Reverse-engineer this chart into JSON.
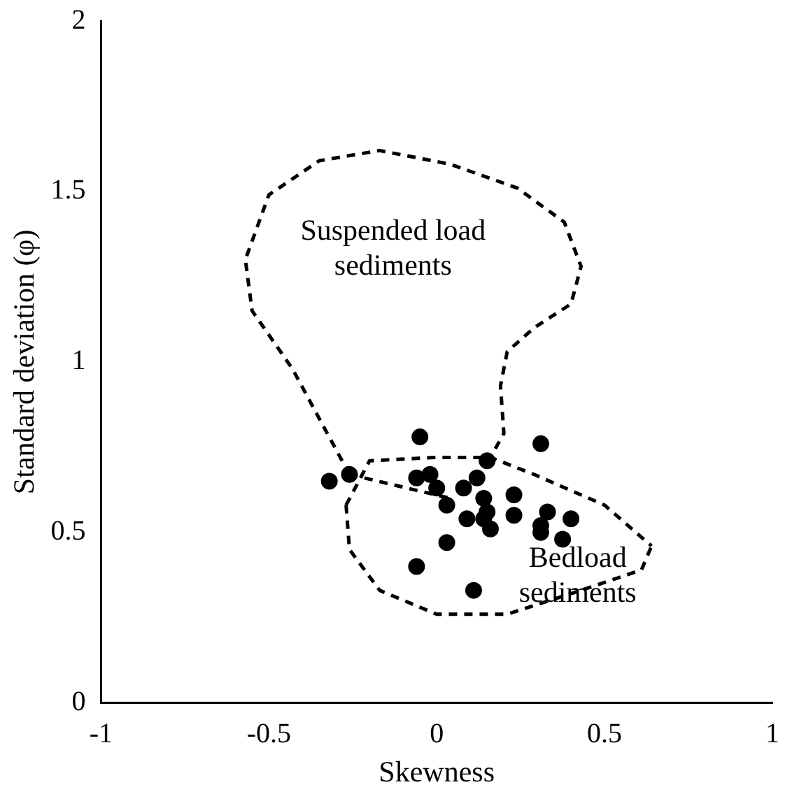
{
  "chart_data": {
    "type": "scatter",
    "xlabel": "Skewness",
    "ylabel": "Standard deviation (φ)",
    "xlim": [
      -1,
      1
    ],
    "ylim": [
      0,
      2
    ],
    "xticks": [
      -1,
      -0.5,
      0,
      0.5,
      1
    ],
    "yticks": [
      0,
      0.5,
      1,
      1.5,
      2
    ],
    "grid": false,
    "legend": false,
    "marker": "circle",
    "series": [
      {
        "color": "#000000",
        "x": [
          -0.05,
          0.31,
          -0.32,
          -0.26,
          0.15,
          -0.06,
          -0.02,
          0.0,
          0.03,
          0.08,
          0.12,
          0.14,
          0.15,
          0.09,
          0.14,
          0.16,
          0.23,
          0.23,
          0.33,
          0.4,
          0.31,
          0.31,
          0.375,
          0.03,
          -0.06,
          0.11
        ],
        "values": [
          0.78,
          0.76,
          0.65,
          0.67,
          0.71,
          0.66,
          0.67,
          0.63,
          0.58,
          0.63,
          0.66,
          0.6,
          0.56,
          0.54,
          0.54,
          0.51,
          0.61,
          0.55,
          0.56,
          0.54,
          0.52,
          0.5,
          0.48,
          0.47,
          0.4,
          0.33
        ]
      },
      {
        "type": "line",
        "color": "#000000",
        "line_style": "dashed",
        "marker": "none",
        "x": [
          -0.26,
          -0.43,
          -0.55,
          -0.57,
          -0.5,
          -0.35,
          -0.17,
          0.04,
          0.24,
          0.38,
          0.43,
          0.4,
          0.29,
          0.21,
          0.19,
          0.2,
          0.16
        ],
        "values": [
          0.67,
          0.98,
          1.15,
          1.3,
          1.49,
          1.59,
          1.62,
          1.58,
          1.51,
          1.41,
          1.28,
          1.17,
          1.1,
          1.03,
          0.93,
          0.79,
          0.72
        ]
      },
      {
        "type": "line",
        "color": "#000000",
        "line_style": "dashed",
        "marker": "none",
        "x": [
          -0.27,
          -0.2,
          0,
          0.16,
          0.29,
          0.5,
          0.64
        ],
        "values": [
          0.58,
          0.71,
          0.72,
          0.72,
          0.67,
          0.58,
          0.46
        ]
      },
      {
        "type": "line",
        "color": "#000000",
        "line_style": "dashed",
        "marker": "none",
        "x": [
          -0.27,
          -0.26,
          -0.17,
          0,
          0.21,
          0.43,
          0.61,
          0.64
        ],
        "values": [
          0.58,
          0.45,
          0.33,
          0.26,
          0.26,
          0.33,
          0.39,
          0.46
        ]
      },
      {
        "type": "line",
        "color": "#000000",
        "line_style": "dashed",
        "marker": "none",
        "x": [
          -0.26,
          0.04
        ],
        "values": [
          0.67,
          0.6
        ]
      }
    ],
    "annotations": [
      "Suspended load\nsediments",
      "Bedload\nsediments"
    ]
  }
}
